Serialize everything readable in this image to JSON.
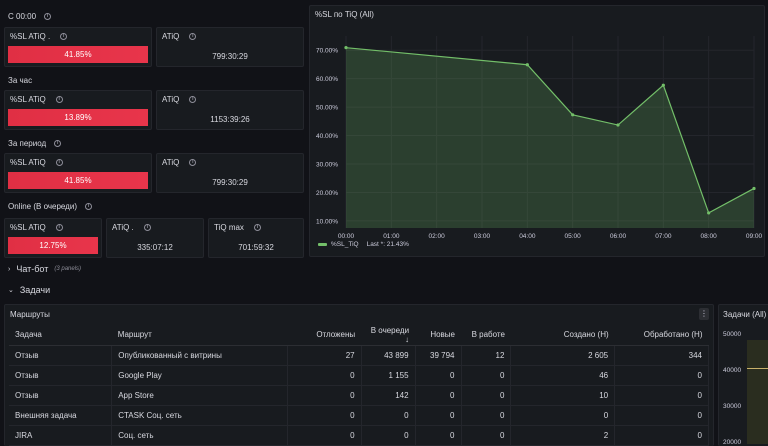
{
  "sections": {
    "since_midnight": "С 00:00",
    "per_hour": "За час",
    "per_period": "За период",
    "online": "Online (В очереди)"
  },
  "stats": {
    "midnight_sl": {
      "title": "%SL ATiQ .",
      "value": "41.85%"
    },
    "midnight_atiq": {
      "title": "ATiQ",
      "value": "799:30:29"
    },
    "hour_sl": {
      "title": "%SL ATiQ",
      "value": "13.89%"
    },
    "hour_atiq": {
      "title": "ATiQ",
      "value": "1153:39:26"
    },
    "period_sl": {
      "title": "%SL ATiQ",
      "value": "41.85%"
    },
    "period_atiq": {
      "title": "ATiQ",
      "value": "799:30:29"
    },
    "online_sl": {
      "title": "%SL ATiQ",
      "value": "12.75%"
    },
    "online_atiq": {
      "title": "ATiQ .",
      "value": "335:07:12"
    },
    "online_tiqmax": {
      "title": "TiQ max",
      "value": "701:59:32"
    }
  },
  "chart_data": {
    "type": "area",
    "title": "%SL по TiQ (All)",
    "x": [
      "00:00",
      "04:00",
      "05:00",
      "06:00",
      "07:00",
      "08:00",
      "09:00"
    ],
    "x_ticks": [
      "00:00",
      "01:00",
      "02:00",
      "03:00",
      "04:00",
      "05:00",
      "06:00",
      "07:00",
      "08:00",
      "09:00"
    ],
    "series": [
      {
        "name": "%SL_TiQ",
        "values": [
          70.9,
          64.9,
          47.3,
          43.7,
          57.7,
          12.8,
          21.4
        ]
      }
    ],
    "y_ticks": [
      "10.00%",
      "20.00%",
      "30.00%",
      "40.00%",
      "50.00%",
      "60.00%",
      "70.00%"
    ],
    "ylim": [
      7.5,
      75
    ],
    "legend": {
      "name": "%SL_TiQ",
      "last_label": "Last *: 21.43%"
    },
    "color": "#73bf69"
  },
  "rows": {
    "chatbot": {
      "title": "Чат-бот",
      "sub": "(3 panels)"
    },
    "tasks": {
      "title": "Задачи"
    }
  },
  "routes_table": {
    "title": "Маршруты",
    "columns": [
      "Задача",
      "Маршрут",
      "Отложены",
      "В очереди ↓",
      "Новые",
      "В работе",
      "Создано (Н)",
      "Обработано (Н)"
    ],
    "rows": [
      [
        "Отзыв",
        "Опубликованный с витрины",
        "27",
        "43 899",
        "39 794",
        "12",
        "2 605",
        "344"
      ],
      [
        "Отзыв",
        "Google Play",
        "0",
        "1 155",
        "0",
        "0",
        "46",
        "0"
      ],
      [
        "Отзыв",
        "App Store",
        "0",
        "142",
        "0",
        "0",
        "10",
        "0"
      ],
      [
        "Внешняя задача",
        "CTASK Соц. сеть",
        "0",
        "0",
        "0",
        "0",
        "0",
        "0"
      ],
      [
        "JIRA",
        "Соц. сеть",
        "0",
        "0",
        "0",
        "0",
        "2",
        "0"
      ]
    ]
  },
  "tasks_panel": {
    "title": "Задачи (All)",
    "y_ticks": [
      "50000",
      "40000",
      "30000",
      "20000"
    ]
  }
}
